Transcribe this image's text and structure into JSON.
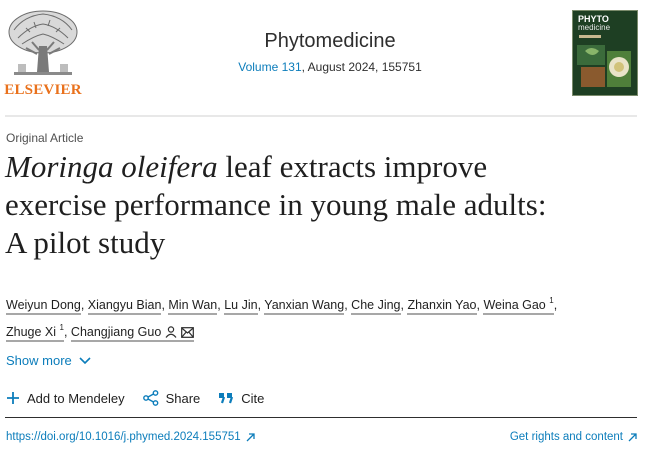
{
  "header": {
    "publisher_logo_text": "ELSEVIER",
    "journal_name": "Phytomedicine",
    "issue_link": "Volume 131",
    "issue_rest": ", August 2024, 155751",
    "cover_title": "PHYTO",
    "cover_subtitle": "medicine"
  },
  "article": {
    "type": "Original Article",
    "title_italic": "Moringa oleifera",
    "title_rest_1": " leaf extracts improve",
    "title_line_2": "exercise performance in young male adults:",
    "title_line_3": "A pilot study"
  },
  "authors": [
    {
      "name": "Weiyun Dong",
      "sup": ""
    },
    {
      "name": "Xiangyu Bian",
      "sup": ""
    },
    {
      "name": "Min Wan",
      "sup": ""
    },
    {
      "name": "Lu Jin",
      "sup": ""
    },
    {
      "name": "Yanxian Wang",
      "sup": ""
    },
    {
      "name": "Che Jing",
      "sup": ""
    },
    {
      "name": "Zhanxin Yao",
      "sup": ""
    },
    {
      "name": "Weina Gao",
      "sup": "1"
    },
    {
      "name": "Zhuge Xi",
      "sup": "1"
    },
    {
      "name": "Changjiang Guo",
      "sup": ""
    }
  ],
  "show_more_label": "Show more",
  "actions": {
    "mendeley": "Add to Mendeley",
    "share": "Share",
    "cite": "Cite"
  },
  "footer": {
    "doi": "https://doi.org/10.1016/j.phymed.2024.155751",
    "rights": "Get rights and content"
  },
  "colors": {
    "link": "#0c7dbb",
    "elsevier_orange": "#e9711c",
    "text": "#1f1f1f"
  },
  "icons": [
    "elsevier-tree-logo",
    "person-icon",
    "envelope-icon",
    "chevron-down-icon",
    "plus-icon",
    "share-icon",
    "quote-icon",
    "external-arrow-icon"
  ]
}
